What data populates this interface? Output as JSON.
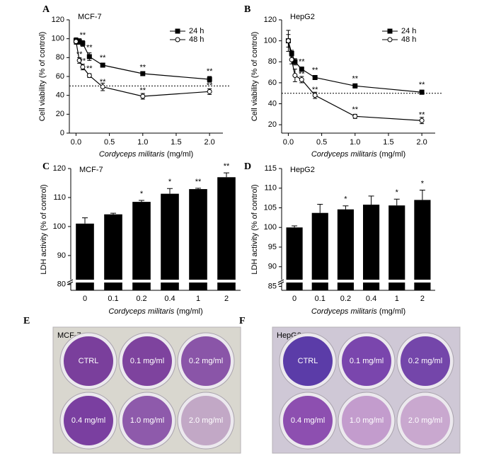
{
  "chart_data": [
    {
      "type": "line",
      "panel_label": "A",
      "title": "MCF-7",
      "y_label": "Cell viability (% of control)",
      "x_label_italic": "Cordyceps militaris",
      "x_label_unit": "(mg/ml)",
      "x": [
        0,
        0.05,
        0.1,
        0.2,
        0.4,
        1.0,
        2.0
      ],
      "series": [
        {
          "name": "24 h",
          "color": "#000000",
          "marker": "square",
          "filled": true,
          "values": [
            98,
            97,
            95,
            81,
            72,
            63,
            57
          ],
          "errors": [
            3,
            3,
            3,
            4,
            2,
            1,
            3
          ],
          "significance": [
            null,
            null,
            "**",
            "**",
            "**",
            "**",
            "**"
          ]
        },
        {
          "name": "48 h",
          "color": "#000000",
          "marker": "circle",
          "filled": false,
          "values": [
            97,
            77,
            70,
            61,
            49,
            39,
            44
          ],
          "errors": [
            3,
            3,
            3,
            2,
            4,
            3,
            3
          ],
          "significance": [
            null,
            "**",
            "**",
            "**",
            "**",
            "**",
            "**"
          ]
        }
      ],
      "reference_line": 50,
      "legend": "upper right",
      "xlim": [
        -0.1,
        2.2
      ],
      "xticks": [
        {
          "value": 0,
          "label": "0.0"
        },
        0.5,
        {
          "value": 1,
          "label": "1.0"
        },
        1.5,
        {
          "value": 2,
          "label": "2.0"
        }
      ],
      "ylim": [
        0,
        120
      ],
      "yticks": [
        0,
        20,
        40,
        60,
        80,
        100,
        120
      ]
    },
    {
      "type": "line",
      "panel_label": "B",
      "title": "HepG2",
      "y_label": "Cell viability (% of control)",
      "x_label_italic": "Cordyceps militaris",
      "x_label_unit": "(mg/ml)",
      "x": [
        0,
        0.05,
        0.1,
        0.2,
        0.4,
        1.0,
        2.0
      ],
      "series": [
        {
          "name": "24 h",
          "color": "#000000",
          "marker": "square",
          "filled": true,
          "values": [
            100,
            88,
            80,
            73,
            65,
            57,
            51
          ],
          "errors": [
            10,
            3,
            3,
            2,
            2,
            2,
            2
          ],
          "significance": [
            null,
            null,
            null,
            "**",
            "**",
            "**",
            "**"
          ]
        },
        {
          "name": "48 h",
          "color": "#000000",
          "marker": "circle",
          "filled": false,
          "values": [
            100,
            82,
            67,
            63,
            48,
            28,
            24
          ],
          "errors": [
            6,
            4,
            6,
            3,
            3,
            2,
            3
          ],
          "significance": [
            null,
            null,
            null,
            "**",
            "**",
            "**",
            "**"
          ]
        }
      ],
      "reference_line": 50,
      "legend": "upper right",
      "xlim": [
        -0.1,
        2.2
      ],
      "xticks": [
        {
          "value": 0,
          "label": "0.0"
        },
        0.5,
        {
          "value": 1,
          "label": "1.0"
        },
        1.5,
        {
          "value": 2,
          "label": "2.0"
        }
      ],
      "ylim": [
        12,
        120
      ],
      "yticks": [
        20,
        40,
        60,
        80,
        100,
        120
      ]
    },
    {
      "type": "bar",
      "panel_label": "C",
      "title": "MCF-7",
      "y_label": "LDH activity (% of control)",
      "x_label_italic": "Cordyceps militaris",
      "x_label_unit": "(mg/ml)",
      "categories": [
        "0",
        "0.1",
        "0.2",
        "0.4",
        "1",
        "2"
      ],
      "color": "#000000",
      "values": [
        101,
        104.2,
        108.5,
        111.3,
        112.9,
        117
      ],
      "errors": [
        2,
        0.4,
        0.5,
        1.8,
        0.3,
        1.5
      ],
      "significance": [
        null,
        null,
        "*",
        "*",
        "**",
        "**"
      ],
      "ylim": [
        78,
        120
      ],
      "yticks": [
        80,
        90,
        100,
        110,
        120
      ]
    },
    {
      "type": "bar",
      "panel_label": "D",
      "title": "HepG2",
      "y_label": "LDH activity (% of control)",
      "x_label_italic": "Cordyceps militaris",
      "x_label_unit": "(mg/ml)",
      "categories": [
        "0",
        "0.1",
        "0.2",
        "0.4",
        "1",
        "2"
      ],
      "color": "#000000",
      "values": [
        100,
        103.7,
        104.6,
        105.8,
        105.6,
        107
      ],
      "errors": [
        0.4,
        2.2,
        0.9,
        2.2,
        1.6,
        2.5
      ],
      "significance": [
        null,
        null,
        "*",
        null,
        "*",
        "*"
      ],
      "ylim": [
        84,
        115
      ],
      "yticks": [
        85,
        90,
        95,
        100,
        105,
        110,
        115
      ]
    }
  ],
  "photos": [
    {
      "panel_label": "E",
      "title": "MCF-7",
      "wells": [
        "CTRL",
        "0.1 mg/ml",
        "0.2 mg/ml",
        "0.4 mg/ml",
        "1.0 mg/ml",
        "2.0 mg/ml"
      ],
      "well_colors": [
        "#7a3f9c",
        "#7e439e",
        "#8a55a8",
        "#7a3fa0",
        "#8e5aab",
        "#c2a8c6"
      ]
    },
    {
      "panel_label": "F",
      "title": "HepG2",
      "wells": [
        "CTRL",
        "0.1 mg/ml",
        "0.2 mg/ml",
        "0.4 mg/ml",
        "1.0 mg/ml",
        "2.0 mg/ml"
      ],
      "well_colors": [
        "#5b3ca8",
        "#7a46ad",
        "#7446aa",
        "#8d4fb0",
        "#c39ccd",
        "#c9a8cf"
      ]
    }
  ]
}
